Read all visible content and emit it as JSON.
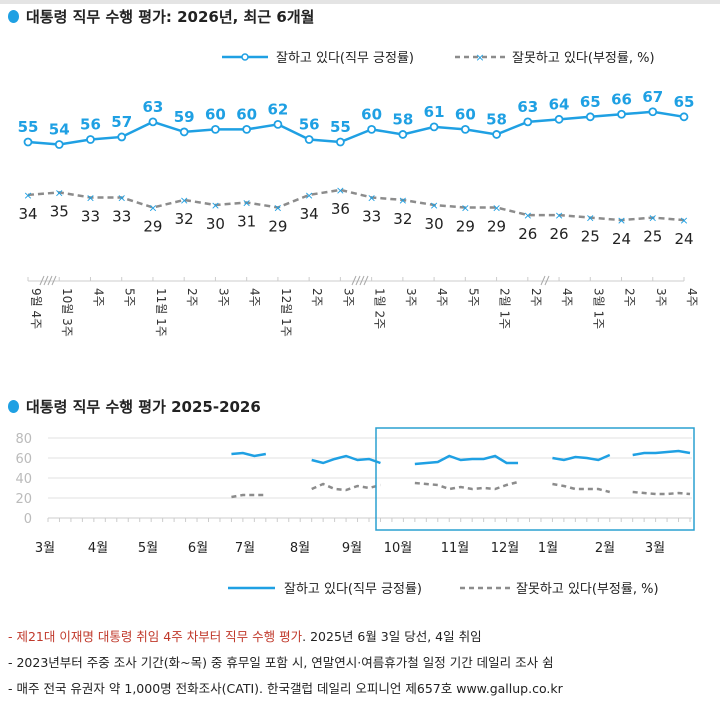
{
  "colors": {
    "positive": "#1fa0e3",
    "negative": "#8c8c8c",
    "highlight": "#2aa0d0"
  },
  "chart_data": [
    {
      "type": "line",
      "title": "대통령 직무 수행 평가: 2026년, 최근 6개월",
      "categories": [
        "9월 4주",
        "10월 3주",
        "4주",
        "5주",
        "11월 1주",
        "2주",
        "3주",
        "4주",
        "12월 1주",
        "2주",
        "3주",
        "1월 2주",
        "3주",
        "4주",
        "5주",
        "2월 1주",
        "2주",
        "4주",
        "3월 1주",
        "2주",
        "3주",
        "4주"
      ],
      "series": [
        {
          "name": "잘하고 있다(직무 긍정률)",
          "values": [
            55,
            54,
            56,
            57,
            63,
            59,
            60,
            60,
            62,
            56,
            55,
            60,
            58,
            61,
            60,
            58,
            63,
            64,
            65,
            66,
            67,
            65
          ]
        },
        {
          "name": "잘못하고 있다(부정률, %)",
          "values": [
            34,
            35,
            33,
            33,
            29,
            32,
            30,
            31,
            29,
            34,
            36,
            33,
            32,
            30,
            29,
            29,
            26,
            26,
            25,
            24,
            25,
            24
          ]
        }
      ],
      "legend": "top-right",
      "grid": false
    },
    {
      "type": "line",
      "title": "대통령 직무 수행 평가 2025-2026",
      "month_labels": [
        "3월",
        "4월",
        "5월",
        "6월",
        "7월",
        "8월",
        "9월",
        "10월",
        "11월",
        "12월",
        "1월",
        "2월",
        "3월"
      ],
      "yticks": [
        0,
        20,
        40,
        60,
        80
      ],
      "ylim": [
        0,
        80
      ],
      "series": [
        {
          "name": "잘하고 있다(직무 긍정률)",
          "values": [
            null,
            null,
            null,
            null,
            null,
            null,
            null,
            null,
            null,
            null,
            null,
            null,
            null,
            null,
            null,
            null,
            64,
            65,
            62,
            64,
            null,
            null,
            null,
            58,
            55,
            59,
            62,
            58,
            59,
            55,
            null,
            null,
            54,
            55,
            56,
            62,
            58,
            59,
            59,
            62,
            55,
            55,
            null,
            null,
            60,
            58,
            61,
            60,
            58,
            63,
            null,
            63,
            65,
            65,
            66,
            67,
            65
          ]
        },
        {
          "name": "잘못하고 있다(부정률, %)",
          "values": [
            null,
            null,
            null,
            null,
            null,
            null,
            null,
            null,
            null,
            null,
            null,
            null,
            null,
            null,
            null,
            null,
            21,
            23,
            23,
            23,
            null,
            null,
            null,
            29,
            34,
            29,
            28,
            32,
            30,
            33,
            null,
            null,
            35,
            34,
            33,
            29,
            31,
            29,
            30,
            29,
            33,
            36,
            null,
            null,
            34,
            32,
            29,
            29,
            29,
            26,
            null,
            26,
            25,
            24,
            24,
            25,
            24
          ]
        }
      ],
      "legend": "bottom",
      "grid": true
    }
  ],
  "footnotes": {
    "line1_red": "- 제21대 이재명 대통령 취임 4주 차부터 직무 수행 평가",
    "line1_rest": ". 2025년 6월 3일 당선, 4일 취임",
    "line2": "- 2023년부터 주중 조사 기간(화~목) 중 휴무일 포함 시, 연말연시·여름휴가철 일정 기간 데일리 조사 쉼",
    "line3": "- 매주 전국 유권자 약 1,000명 전화조사(CATI). 한국갤럽 데일리 오피니언 제657호 www.gallup.co.kr"
  }
}
